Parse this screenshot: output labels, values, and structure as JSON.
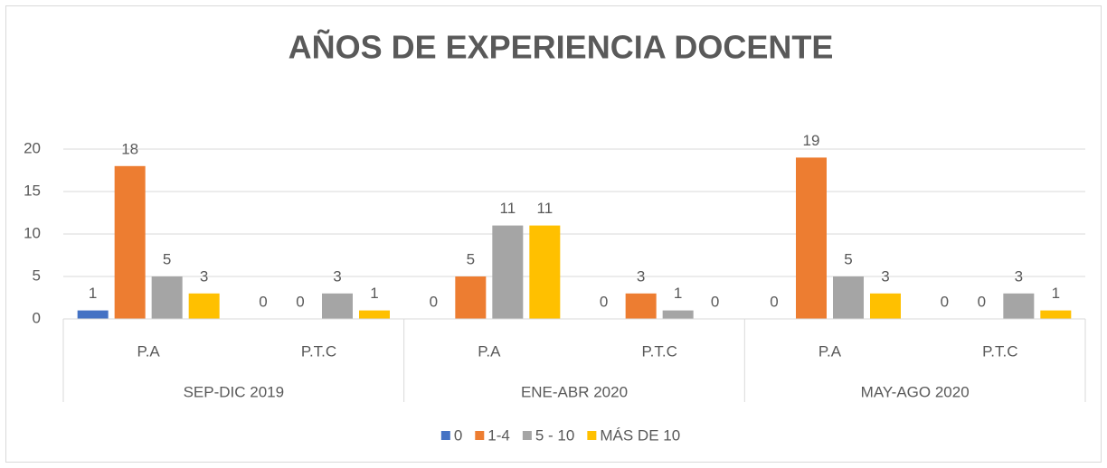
{
  "chart_data": {
    "type": "bar",
    "title": "AÑOS DE EXPERIENCIA DOCENTE",
    "groups": [
      {
        "name": "SEP-DIC 2019",
        "categories": [
          "P.A",
          "P.T.C"
        ]
      },
      {
        "name": "ENE-ABR 2020",
        "categories": [
          "P.A",
          "P.T.C"
        ]
      },
      {
        "name": "MAY-AGO 2020",
        "categories": [
          "P.A",
          "P.T.C"
        ]
      }
    ],
    "series": [
      {
        "name": "0",
        "color": "#4472c4",
        "values": [
          1,
          0,
          0,
          0,
          0,
          0
        ]
      },
      {
        "name": "1-4",
        "color": "#ed7d31",
        "values": [
          18,
          0,
          5,
          3,
          19,
          0
        ]
      },
      {
        "name": "5 - 10",
        "color": "#a5a5a5",
        "values": [
          5,
          3,
          11,
          1,
          5,
          3
        ]
      },
      {
        "name": "MÁS DE 10",
        "color": "#ffc000",
        "values": [
          3,
          1,
          11,
          0,
          3,
          1
        ]
      }
    ],
    "ylim": [
      0,
      20
    ],
    "yticks": [
      0,
      5,
      10,
      15,
      20
    ],
    "grid": true,
    "legend": "bottom"
  }
}
